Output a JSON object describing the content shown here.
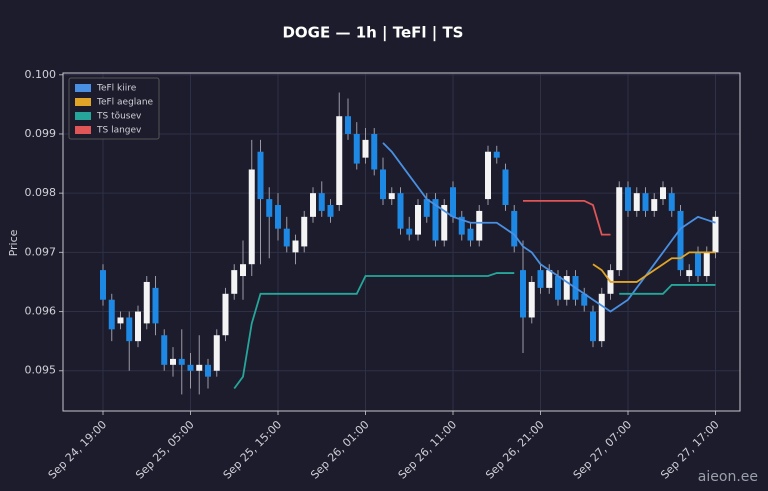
{
  "chart_data": {
    "type": "candlestick",
    "title": "DOGE — 1h  |  TeFl  |  TS",
    "y_label": "Price",
    "watermark": "aieon.ee",
    "categories": [
      "Sep 24, 19:00",
      null,
      null,
      null,
      null,
      null,
      null,
      null,
      null,
      null,
      "Sep 25, 05:00",
      null,
      null,
      null,
      null,
      null,
      null,
      null,
      null,
      null,
      "Sep 25, 15:00",
      null,
      null,
      null,
      null,
      null,
      null,
      null,
      null,
      null,
      "Sep 26, 01:00",
      null,
      null,
      null,
      null,
      null,
      null,
      null,
      null,
      null,
      "Sep 26, 11:00",
      null,
      null,
      null,
      null,
      null,
      null,
      null,
      null,
      null,
      "Sep 26, 21:00",
      null,
      null,
      null,
      null,
      null,
      null,
      null,
      null,
      null,
      "Sep 27, 07:00",
      null,
      null,
      null,
      null,
      null,
      null,
      null,
      null,
      null,
      "Sep 27, 17:00"
    ],
    "open": [
      0.0967,
      0.0962,
      0.0958,
      0.0959,
      0.0955,
      0.0958,
      0.0964,
      0.0956,
      0.0951,
      0.0952,
      0.0951,
      0.095,
      0.0951,
      0.095,
      0.0956,
      0.0963,
      0.0966,
      0.0968,
      0.0987,
      0.0979,
      0.0978,
      0.0974,
      0.097,
      0.0971,
      0.0976,
      0.098,
      0.0978,
      0.0978,
      0.0993,
      0.099,
      0.0986,
      0.099,
      0.0984,
      0.0979,
      0.098,
      0.0974,
      0.0973,
      0.0979,
      0.0979,
      0.0972,
      0.0981,
      0.0976,
      0.0974,
      0.0972,
      0.0979,
      0.0987,
      0.0984,
      0.0977,
      0.0967,
      0.0959,
      0.0967,
      0.0964,
      0.0966,
      0.0962,
      0.0966,
      0.0963,
      0.096,
      0.0955,
      0.0963,
      0.0967,
      0.0981,
      0.0977,
      0.098,
      0.0977,
      0.0979,
      0.098,
      0.0977,
      0.0966,
      0.097,
      0.0966,
      0.097
    ],
    "high": [
      0.0968,
      0.0963,
      0.096,
      0.096,
      0.0961,
      0.0966,
      0.0966,
      0.0957,
      0.0954,
      0.0957,
      0.0953,
      0.0956,
      0.0952,
      0.0957,
      0.0964,
      0.0968,
      0.0972,
      0.0989,
      0.0989,
      0.0981,
      0.098,
      0.0976,
      0.0973,
      0.0977,
      0.0981,
      0.0982,
      0.0979,
      0.0997,
      0.0996,
      0.0992,
      0.0991,
      0.0991,
      0.0986,
      0.0981,
      0.0981,
      0.0976,
      0.0979,
      0.098,
      0.098,
      0.0979,
      0.0982,
      0.0977,
      0.0975,
      0.0978,
      0.0988,
      0.0988,
      0.0985,
      0.0978,
      0.0972,
      0.0966,
      0.0968,
      0.0968,
      0.0967,
      0.0967,
      0.0967,
      0.0964,
      0.0961,
      0.0964,
      0.0968,
      0.0982,
      0.0982,
      0.0981,
      0.0981,
      0.098,
      0.0982,
      0.0981,
      0.0978,
      0.0968,
      0.0971,
      0.0971,
      0.0977
    ],
    "low": [
      0.0961,
      0.0955,
      0.0957,
      0.095,
      0.0954,
      0.0957,
      0.0956,
      0.095,
      0.0949,
      0.0946,
      0.0947,
      0.0946,
      0.0947,
      0.0949,
      0.0955,
      0.0962,
      0.0962,
      0.0966,
      0.0968,
      0.0969,
      0.0972,
      0.097,
      0.0968,
      0.097,
      0.0975,
      0.0976,
      0.0975,
      0.0977,
      0.0989,
      0.0984,
      0.0985,
      0.0983,
      0.0978,
      0.0978,
      0.0973,
      0.0972,
      0.0972,
      0.0975,
      0.0971,
      0.0971,
      0.0975,
      0.0972,
      0.0971,
      0.0971,
      0.0978,
      0.0985,
      0.0977,
      0.097,
      0.0953,
      0.0958,
      0.0963,
      0.0963,
      0.0961,
      0.0961,
      0.0961,
      0.096,
      0.0954,
      0.0954,
      0.0962,
      0.0966,
      0.0976,
      0.0976,
      0.0976,
      0.0976,
      0.0978,
      0.0976,
      0.0966,
      0.0965,
      0.0965,
      0.0965,
      0.0969
    ],
    "close": [
      0.0962,
      0.0957,
      0.0959,
      0.0955,
      0.096,
      0.0965,
      0.0958,
      0.0951,
      0.0952,
      0.0951,
      0.095,
      0.0951,
      0.0949,
      0.0956,
      0.0963,
      0.0967,
      0.0968,
      0.0984,
      0.0979,
      0.0976,
      0.0974,
      0.0971,
      0.0972,
      0.0976,
      0.098,
      0.0977,
      0.0976,
      0.0993,
      0.099,
      0.0985,
      0.0989,
      0.0984,
      0.0979,
      0.098,
      0.0974,
      0.0973,
      0.0978,
      0.0976,
      0.0972,
      0.0978,
      0.0976,
      0.0973,
      0.0972,
      0.0977,
      0.0987,
      0.0986,
      0.0978,
      0.0971,
      0.0959,
      0.0965,
      0.0964,
      0.0967,
      0.0962,
      0.0966,
      0.0962,
      0.0961,
      0.0955,
      0.0963,
      0.0967,
      0.0981,
      0.0977,
      0.098,
      0.0977,
      0.0979,
      0.0981,
      0.0977,
      0.0967,
      0.0967,
      0.0966,
      0.097,
      0.0976
    ],
    "up_color": "#f4f4f4",
    "down_color": "#1e88e5",
    "series": [
      {
        "name": "TeFl kiire",
        "color": "#4a90e2",
        "values": [
          null,
          null,
          null,
          null,
          null,
          null,
          null,
          null,
          null,
          null,
          null,
          null,
          null,
          null,
          null,
          null,
          null,
          null,
          null,
          null,
          null,
          null,
          null,
          null,
          null,
          null,
          null,
          null,
          null,
          null,
          null,
          null,
          0.09885,
          0.0987,
          0.0985,
          0.0983,
          0.0981,
          0.0979,
          0.0978,
          0.0977,
          0.0976,
          0.09755,
          0.0975,
          0.0975,
          0.0975,
          0.0975,
          0.0974,
          0.0973,
          0.0971,
          0.097,
          0.0968,
          0.0967,
          0.0966,
          0.0965,
          0.0964,
          0.0963,
          0.0962,
          0.0961,
          0.096,
          0.0961,
          0.0962,
          0.0964,
          0.0966,
          0.0968,
          0.097,
          0.0972,
          0.0974,
          0.0975,
          0.0976,
          0.09755,
          0.0975
        ]
      },
      {
        "name": "TeFl aeglane",
        "color": "#e0a526",
        "values": [
          null,
          null,
          null,
          null,
          null,
          null,
          null,
          null,
          null,
          null,
          null,
          null,
          null,
          null,
          null,
          null,
          null,
          null,
          null,
          null,
          null,
          null,
          null,
          null,
          null,
          null,
          null,
          null,
          null,
          null,
          null,
          null,
          null,
          null,
          null,
          null,
          null,
          null,
          null,
          null,
          null,
          null,
          null,
          null,
          null,
          null,
          null,
          null,
          null,
          null,
          null,
          null,
          null,
          null,
          null,
          null,
          0.0968,
          0.0967,
          0.0965,
          0.0965,
          0.0965,
          0.0965,
          0.0966,
          0.0967,
          0.0968,
          0.0969,
          0.0969,
          0.097,
          0.097,
          0.097,
          0.097
        ]
      },
      {
        "name": "TS tõusev",
        "color": "#26a69a",
        "values": [
          null,
          null,
          null,
          null,
          null,
          null,
          null,
          null,
          null,
          null,
          null,
          null,
          null,
          null,
          null,
          0.0947,
          0.0949,
          0.0958,
          0.0963,
          0.0963,
          0.0963,
          0.0963,
          0.0963,
          0.0963,
          0.0963,
          0.0963,
          0.0963,
          0.0963,
          0.0963,
          0.0963,
          0.0966,
          0.0966,
          0.0966,
          0.0966,
          0.0966,
          0.0966,
          0.0966,
          0.0966,
          0.0966,
          0.0966,
          0.0966,
          0.0966,
          0.0966,
          0.0966,
          0.0966,
          0.09665,
          0.09665,
          0.09665,
          null,
          null,
          null,
          null,
          null,
          null,
          null,
          null,
          null,
          null,
          null,
          0.0963,
          0.0963,
          0.0963,
          0.0963,
          0.0963,
          0.0963,
          0.09645,
          0.09645,
          0.09645,
          0.09645,
          0.09645,
          0.09645
        ]
      },
      {
        "name": "TS langev",
        "color": "#e05555",
        "values": [
          null,
          null,
          null,
          null,
          null,
          null,
          null,
          null,
          null,
          null,
          null,
          null,
          null,
          null,
          null,
          null,
          null,
          null,
          null,
          null,
          null,
          null,
          null,
          null,
          null,
          null,
          null,
          null,
          null,
          null,
          null,
          null,
          null,
          null,
          null,
          null,
          null,
          null,
          null,
          null,
          null,
          null,
          null,
          null,
          null,
          null,
          null,
          null,
          0.09787,
          0.09787,
          0.09787,
          0.09787,
          0.09787,
          0.09787,
          0.09787,
          0.09787,
          0.0978,
          0.0973,
          0.0973,
          null,
          null,
          null,
          null,
          null,
          null,
          null,
          null,
          null,
          null,
          null,
          null
        ]
      }
    ],
    "ylim": [
      0.09432,
      0.10003
    ],
    "yticks": [
      0.095,
      0.096,
      0.097,
      0.098,
      0.099,
      {
        "value": 0.1,
        "label": "0.100"
      }
    ],
    "grid": true,
    "legend": "upper left"
  }
}
